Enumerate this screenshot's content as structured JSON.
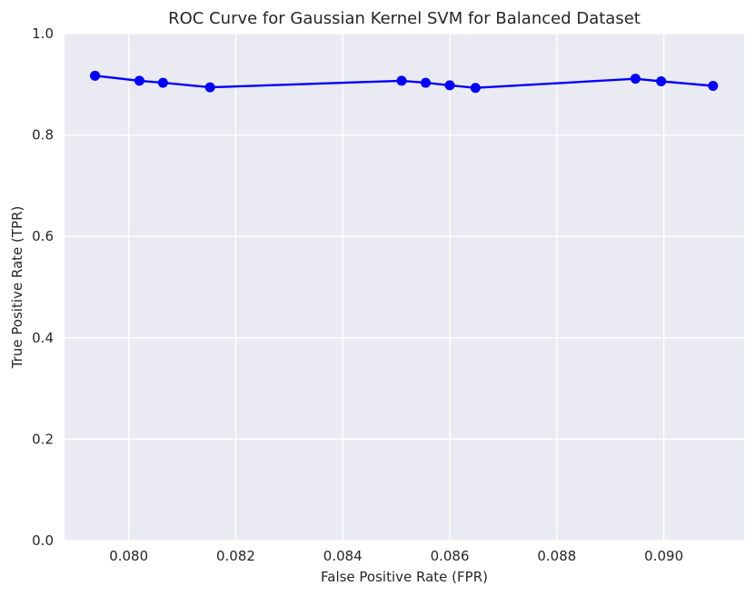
{
  "chart_data": {
    "type": "line",
    "title": "ROC Curve for Gaussian Kernel SVM for Balanced Dataset",
    "xlabel": "False Positive Rate (FPR)",
    "ylabel": "True Positive Rate (TPR)",
    "xlim": [
      0.0788,
      0.0915
    ],
    "ylim": [
      0.0,
      1.0
    ],
    "xticks": [
      0.08,
      0.082,
      0.084,
      0.086,
      0.088,
      0.09
    ],
    "xtick_labels": [
      "0.080",
      "0.082",
      "0.084",
      "0.086",
      "0.088",
      "0.090"
    ],
    "yticks": [
      0.0,
      0.2,
      0.4,
      0.6,
      0.8,
      1.0
    ],
    "ytick_labels": [
      "0.0",
      "0.2",
      "0.4",
      "0.6",
      "0.8",
      "1.0"
    ],
    "grid": true,
    "legend": false,
    "colors": {
      "series": "#0000ff",
      "background": "#eaeaf2",
      "grid": "#ffffff"
    },
    "series": [
      {
        "marker": "circle",
        "x": [
          0.07937,
          0.0802,
          0.08064,
          0.08152,
          0.0851,
          0.08555,
          0.086,
          0.08648,
          0.08947,
          0.08995,
          0.09092
        ],
        "y": [
          0.917,
          0.907,
          0.903,
          0.894,
          0.907,
          0.903,
          0.898,
          0.893,
          0.911,
          0.906,
          0.897
        ]
      }
    ]
  }
}
